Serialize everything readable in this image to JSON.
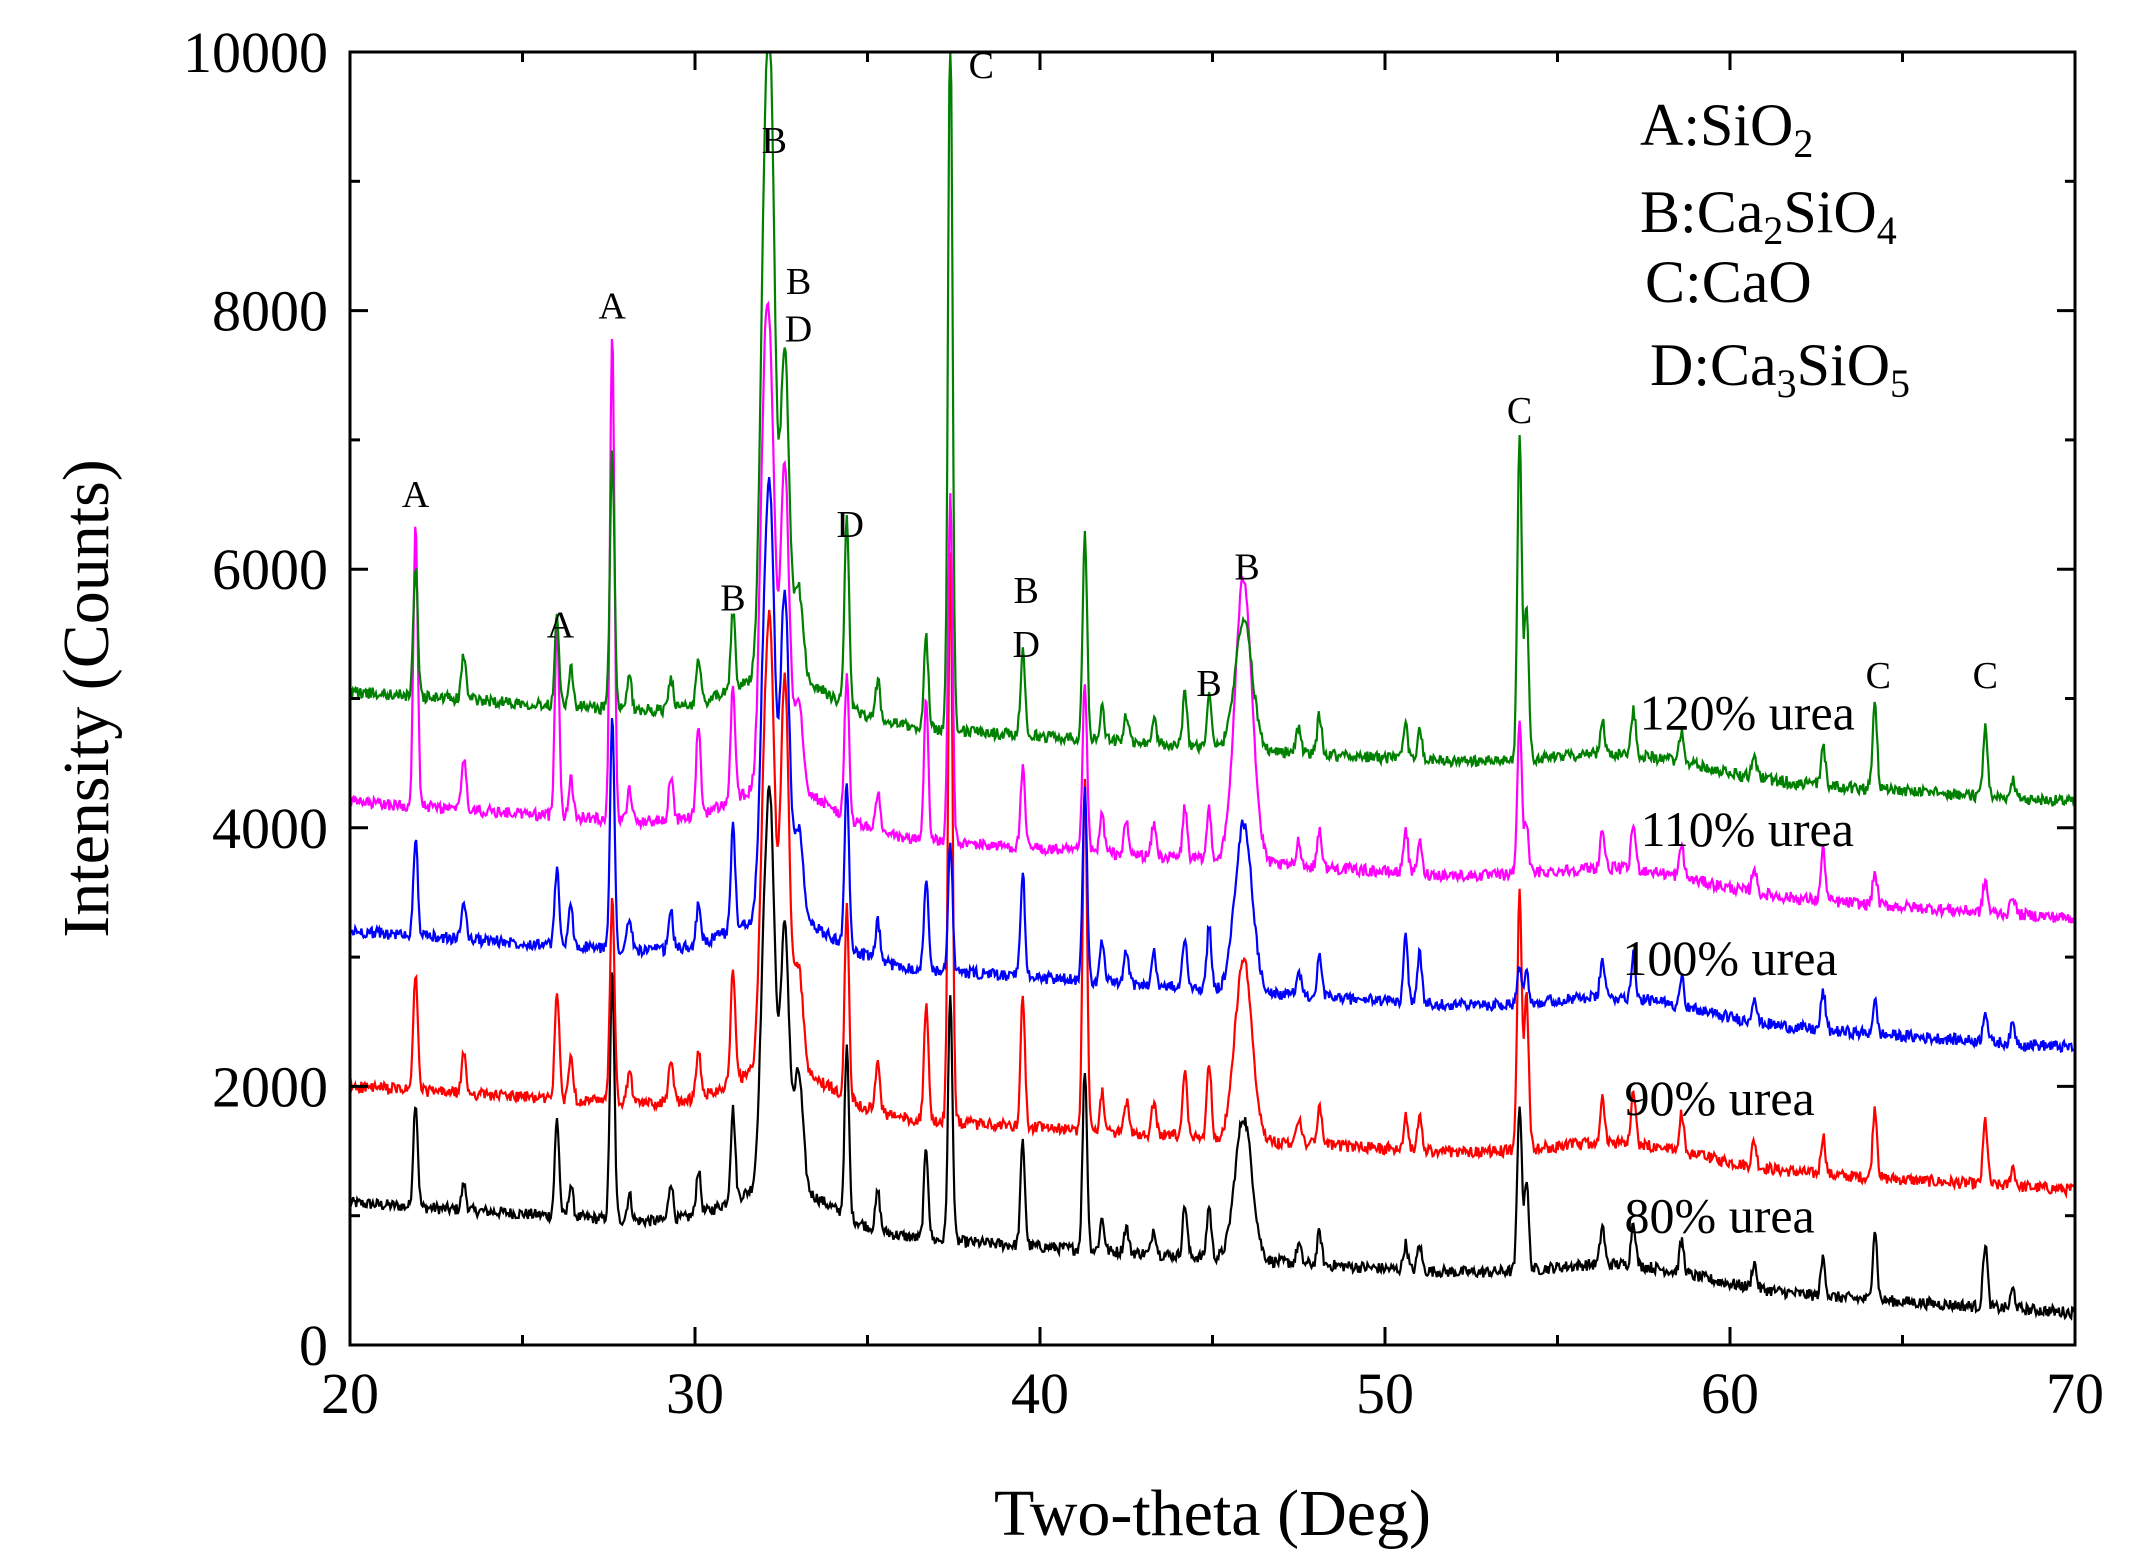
{
  "chart_data": {
    "type": "line",
    "title": "",
    "xlabel": "Two-theta (Deg)",
    "ylabel": "Intensity (Counts)",
    "xlim": [
      20,
      70
    ],
    "ylim": [
      0,
      10000
    ],
    "xticks": [
      20,
      30,
      40,
      50,
      60,
      70
    ],
    "yticks": [
      0,
      2000,
      4000,
      6000,
      8000,
      10000
    ],
    "legend": [
      {
        "key": "A",
        "prefix": "A:",
        "parts": [
          {
            "t": "SiO",
            "sub": false
          },
          {
            "t": "2",
            "sub": true
          }
        ]
      },
      {
        "key": "B",
        "prefix": "B:",
        "parts": [
          {
            "t": "Ca",
            "sub": false
          },
          {
            "t": "2",
            "sub": true
          },
          {
            "t": "SiO",
            "sub": false
          },
          {
            "t": "4",
            "sub": true
          }
        ]
      },
      {
        "key": "C",
        "prefix": "C:",
        "parts": [
          {
            "t": "CaO",
            "sub": false
          }
        ]
      },
      {
        "key": "D",
        "prefix": "D:",
        "parts": [
          {
            "t": "Ca",
            "sub": false
          },
          {
            "t": "3",
            "sub": true
          },
          {
            "t": "SiO",
            "sub": false
          },
          {
            "t": "5",
            "sub": true
          }
        ]
      }
    ],
    "peak_positions": [
      21.9,
      23.3,
      26.0,
      26.4,
      27.6,
      28.1,
      29.3,
      30.1,
      31.1,
      32.0,
      32.2,
      32.6,
      33.0,
      34.4,
      35.3,
      36.7,
      37.4,
      39.5,
      41.3,
      41.8,
      42.5,
      43.3,
      44.2,
      44.9,
      45.9,
      47.5,
      48.1,
      50.6,
      51.0,
      53.9,
      54.1,
      56.3,
      57.2,
      58.6,
      60.7,
      62.7,
      64.2,
      67.4,
      68.2
    ],
    "series": [
      {
        "name": "80% urea",
        "color": "#000000",
        "baseline_start": 1100,
        "baseline_end": 250,
        "peaks": [
          820,
          200,
          750,
          250,
          1900,
          200,
          300,
          350,
          700,
          1500,
          2500,
          2000,
          900,
          1300,
          300,
          700,
          1900,
          800,
          1400,
          250,
          200,
          200,
          400,
          400,
          1100,
          150,
          250,
          200,
          200,
          1300,
          700,
          300,
          350,
          250,
          200,
          300,
          550,
          500,
          150
        ]
      },
      {
        "name": "90% urea",
        "color": "#ff0000",
        "baseline_start": 2000,
        "baseline_end": 1200,
        "peaks": [
          900,
          300,
          850,
          350,
          1600,
          250,
          350,
          350,
          900,
          1800,
          2800,
          3000,
          800,
          1500,
          400,
          900,
          4400,
          1000,
          2700,
          300,
          250,
          250,
          500,
          600,
          1400,
          200,
          300,
          250,
          250,
          2000,
          1200,
          350,
          400,
          300,
          200,
          300,
          550,
          500,
          150
        ]
      },
      {
        "name": "100% urea",
        "color": "#0000ff",
        "baseline_start": 3200,
        "baseline_end": 2300,
        "peaks": [
          750,
          300,
          600,
          300,
          1800,
          250,
          300,
          300,
          800,
          1700,
          2700,
          2500,
          700,
          1300,
          300,
          700,
          1000,
          800,
          1500,
          300,
          250,
          250,
          400,
          500,
          1300,
          200,
          300,
          500,
          400,
          300,
          250,
          300,
          350,
          250,
          200,
          300,
          250,
          250,
          150
        ]
      },
      {
        "name": "110% urea",
        "color": "#ff00ff",
        "baseline_start": 4200,
        "baseline_end": 3300,
        "peaks": [
          2150,
          400,
          1500,
          300,
          3800,
          250,
          350,
          700,
          900,
          2500,
          2600,
          2500,
          700,
          1100,
          300,
          1100,
          2700,
          600,
          1300,
          300,
          250,
          250,
          400,
          400,
          2200,
          200,
          300,
          350,
          250,
          1200,
          400,
          300,
          350,
          250,
          200,
          400,
          250,
          250,
          150
        ]
      },
      {
        "name": "120% urea",
        "color": "#008000",
        "baseline_start": 5050,
        "baseline_end": 4200,
        "peaks": [
          1000,
          350,
          700,
          300,
          2000,
          250,
          250,
          350,
          600,
          2800,
          4000,
          2500,
          700,
          1500,
          300,
          700,
          5600,
          650,
          1600,
          250,
          200,
          200,
          400,
          400,
          1000,
          200,
          300,
          250,
          250,
          2500,
          1200,
          250,
          350,
          250,
          150,
          300,
          650,
          550,
          150
        ]
      }
    ],
    "peak_labels": [
      {
        "text": "A",
        "x": 21.9,
        "y": 6480
      },
      {
        "text": "A",
        "x": 26.1,
        "y": 5470
      },
      {
        "text": "A",
        "x": 27.6,
        "y": 7940
      },
      {
        "text": "B",
        "x": 31.1,
        "y": 5680
      },
      {
        "text": "B",
        "x": 32.3,
        "y": 9220
      },
      {
        "text": "B",
        "x": 33.0,
        "y": 8130
      },
      {
        "text": "D",
        "x": 33.0,
        "y": 7760
      },
      {
        "text": "D",
        "x": 34.5,
        "y": 6250
      },
      {
        "text": "C",
        "x": 38.3,
        "y": 9800
      },
      {
        "text": "B",
        "x": 39.6,
        "y": 5740
      },
      {
        "text": "D",
        "x": 39.6,
        "y": 5320
      },
      {
        "text": "B",
        "x": 44.9,
        "y": 5020
      },
      {
        "text": "B",
        "x": 46.0,
        "y": 5920
      },
      {
        "text": "C",
        "x": 53.9,
        "y": 7130
      },
      {
        "text": "C",
        "x": 64.3,
        "y": 5080
      },
      {
        "text": "C",
        "x": 67.4,
        "y": 5080
      }
    ],
    "series_labels": [
      {
        "text": "120% urea",
        "x": 60.5,
        "y": 4760
      },
      {
        "text": "110% urea",
        "x": 60.5,
        "y": 3860
      },
      {
        "text": "100% urea",
        "x": 60.0,
        "y": 2860
      },
      {
        "text": "90% urea",
        "x": 59.7,
        "y": 1780
      },
      {
        "text": "80% urea",
        "x": 59.7,
        "y": 870
      }
    ]
  }
}
